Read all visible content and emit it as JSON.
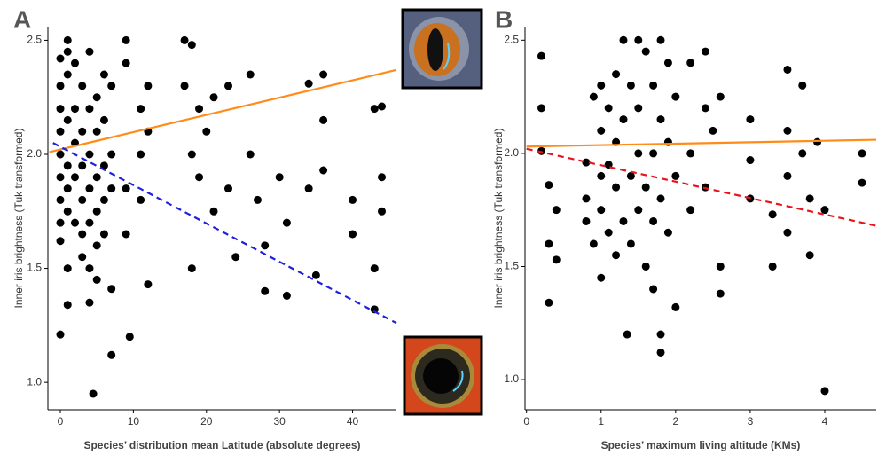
{
  "chart_data": [
    {
      "type": "scatter",
      "panel": "A",
      "x_label": "Species’ distribution mean Latitude (absolute degrees)",
      "y_label": "Inner iris brightness (Tuk transformed)",
      "xlim": [
        -1.7,
        46
      ],
      "ylim": [
        0.88,
        2.56
      ],
      "xticks": [
        0,
        10,
        20,
        30,
        40
      ],
      "yticks": [
        {
          "value": 1,
          "label": "1.0"
        },
        1.5,
        {
          "value": 2,
          "label": "2.0"
        },
        2.5
      ],
      "series": [
        {
          "color": "#000000",
          "x": [
            0,
            0,
            0,
            0,
            0,
            0,
            0,
            0,
            0,
            0,
            1,
            1,
            1,
            1,
            1,
            1,
            1,
            1,
            1,
            2,
            2,
            2,
            2,
            2,
            3,
            3,
            3,
            3,
            3,
            3,
            4,
            4,
            4,
            4,
            4,
            4,
            4,
            4.5,
            5,
            5,
            5,
            5,
            5,
            5,
            6,
            6,
            6,
            6,
            6,
            7,
            7,
            7,
            7,
            7,
            9,
            9,
            9,
            9,
            9.5,
            11,
            11,
            11,
            12,
            12,
            12,
            17,
            17,
            18,
            18,
            18,
            19,
            19,
            20,
            21,
            21,
            23,
            23,
            24,
            26,
            26,
            27,
            28,
            28,
            30,
            31,
            31,
            34,
            34,
            35,
            36,
            36,
            36,
            40,
            40,
            43,
            43,
            43,
            44,
            44,
            44
          ],
          "values": [
            2.42,
            2.3,
            2.2,
            2.1,
            2.0,
            1.9,
            1.8,
            1.7,
            1.62,
            1.21,
            2.5,
            2.45,
            2.35,
            2.15,
            1.95,
            1.85,
            1.75,
            1.5,
            1.34,
            2.4,
            2.2,
            2.05,
            1.9,
            1.7,
            2.3,
            2.1,
            1.95,
            1.8,
            1.65,
            1.55,
            2.45,
            2.2,
            2.0,
            1.85,
            1.7,
            1.5,
            1.35,
            0.95,
            2.25,
            2.1,
            1.9,
            1.75,
            1.6,
            1.45,
            2.35,
            2.15,
            1.95,
            1.8,
            1.65,
            2.3,
            2.0,
            1.85,
            1.41,
            1.12,
            2.5,
            2.4,
            1.85,
            1.65,
            1.2,
            2.2,
            2.0,
            1.8,
            2.3,
            2.1,
            1.43,
            2.5,
            2.3,
            2.48,
            2.0,
            1.5,
            2.2,
            1.9,
            2.1,
            2.25,
            1.75,
            2.3,
            1.85,
            1.55,
            2.35,
            2.0,
            1.8,
            1.6,
            1.4,
            1.9,
            1.7,
            1.38,
            2.31,
            1.85,
            1.47,
            2.35,
            2.15,
            1.93,
            1.8,
            1.65,
            2.2,
            1.5,
            1.32,
            2.21,
            1.9,
            1.75
          ]
        }
      ],
      "trend_lines": [
        {
          "color": "#ff8c1a",
          "dash": false,
          "x": [
            -1.5,
            46
          ],
          "values": [
            2.01,
            2.37
          ]
        },
        {
          "color": "#1f1fe0",
          "dash": true,
          "x": [
            -1,
            46
          ],
          "values": [
            2.05,
            1.26
          ]
        }
      ]
    },
    {
      "type": "scatter",
      "panel": "B",
      "x_label": "Species’ maximum living altitude (KMs)",
      "y_label": "Inner iris brightness (Tuk transformed)",
      "xlim": [
        -0.02,
        4.69
      ],
      "ylim": [
        0.867,
        2.56
      ],
      "xticks": [
        0,
        1,
        2,
        3,
        4
      ],
      "yticks": [
        {
          "value": 1,
          "label": "1.0"
        },
        1.5,
        {
          "value": 2,
          "label": "2.0"
        },
        2.5
      ],
      "series": [
        {
          "color": "#000000",
          "x": [
            0.2,
            0.2,
            0.2,
            0.3,
            0.3,
            0.3,
            0.4,
            0.4,
            0.8,
            0.8,
            0.8,
            0.9,
            0.9,
            1.0,
            1.0,
            1.0,
            1.0,
            1.0,
            1.1,
            1.1,
            1.1,
            1.2,
            1.2,
            1.2,
            1.2,
            1.3,
            1.3,
            1.3,
            1.35,
            1.4,
            1.4,
            1.4,
            1.5,
            1.5,
            1.5,
            1.5,
            1.6,
            1.6,
            1.6,
            1.7,
            1.7,
            1.7,
            1.7,
            1.8,
            1.8,
            1.8,
            1.8,
            1.8,
            1.9,
            1.9,
            1.9,
            2.0,
            2.0,
            2.0,
            2.2,
            2.2,
            2.2,
            2.4,
            2.4,
            2.4,
            2.5,
            2.6,
            2.6,
            2.6,
            3.0,
            3.0,
            3.0,
            3.3,
            3.3,
            3.5,
            3.5,
            3.5,
            3.5,
            3.7,
            3.7,
            3.8,
            3.8,
            3.9,
            4.0,
            4.0,
            4.5,
            4.5
          ],
          "values": [
            2.43,
            2.2,
            2.01,
            1.86,
            1.6,
            1.34,
            1.75,
            1.53,
            1.96,
            1.8,
            1.7,
            2.25,
            1.6,
            2.3,
            2.1,
            1.9,
            1.75,
            1.45,
            2.2,
            1.95,
            1.65,
            2.35,
            2.05,
            1.85,
            1.55,
            2.5,
            2.15,
            1.7,
            1.2,
            2.3,
            1.9,
            1.6,
            2.5,
            2.2,
            2.0,
            1.75,
            2.45,
            1.85,
            1.5,
            2.3,
            2.0,
            1.7,
            1.4,
            2.5,
            2.15,
            1.8,
            1.2,
            1.12,
            2.4,
            2.05,
            1.65,
            2.25,
            1.9,
            1.32,
            2.4,
            2.0,
            1.75,
            2.45,
            2.2,
            1.85,
            2.1,
            2.25,
            1.5,
            1.38,
            2.15,
            1.97,
            1.8,
            1.73,
            1.5,
            2.37,
            2.1,
            1.9,
            1.65,
            2.3,
            2.0,
            1.8,
            1.55,
            2.05,
            1.75,
            0.95,
            2.0,
            1.87
          ]
        }
      ],
      "trend_lines": [
        {
          "color": "#ff8c1a",
          "dash": false,
          "x": [
            0,
            4.69
          ],
          "values": [
            2.03,
            2.06
          ]
        },
        {
          "color": "#e8141c",
          "dash": true,
          "x": [
            0,
            4.69
          ],
          "values": [
            2.02,
            1.68
          ]
        }
      ]
    }
  ]
}
